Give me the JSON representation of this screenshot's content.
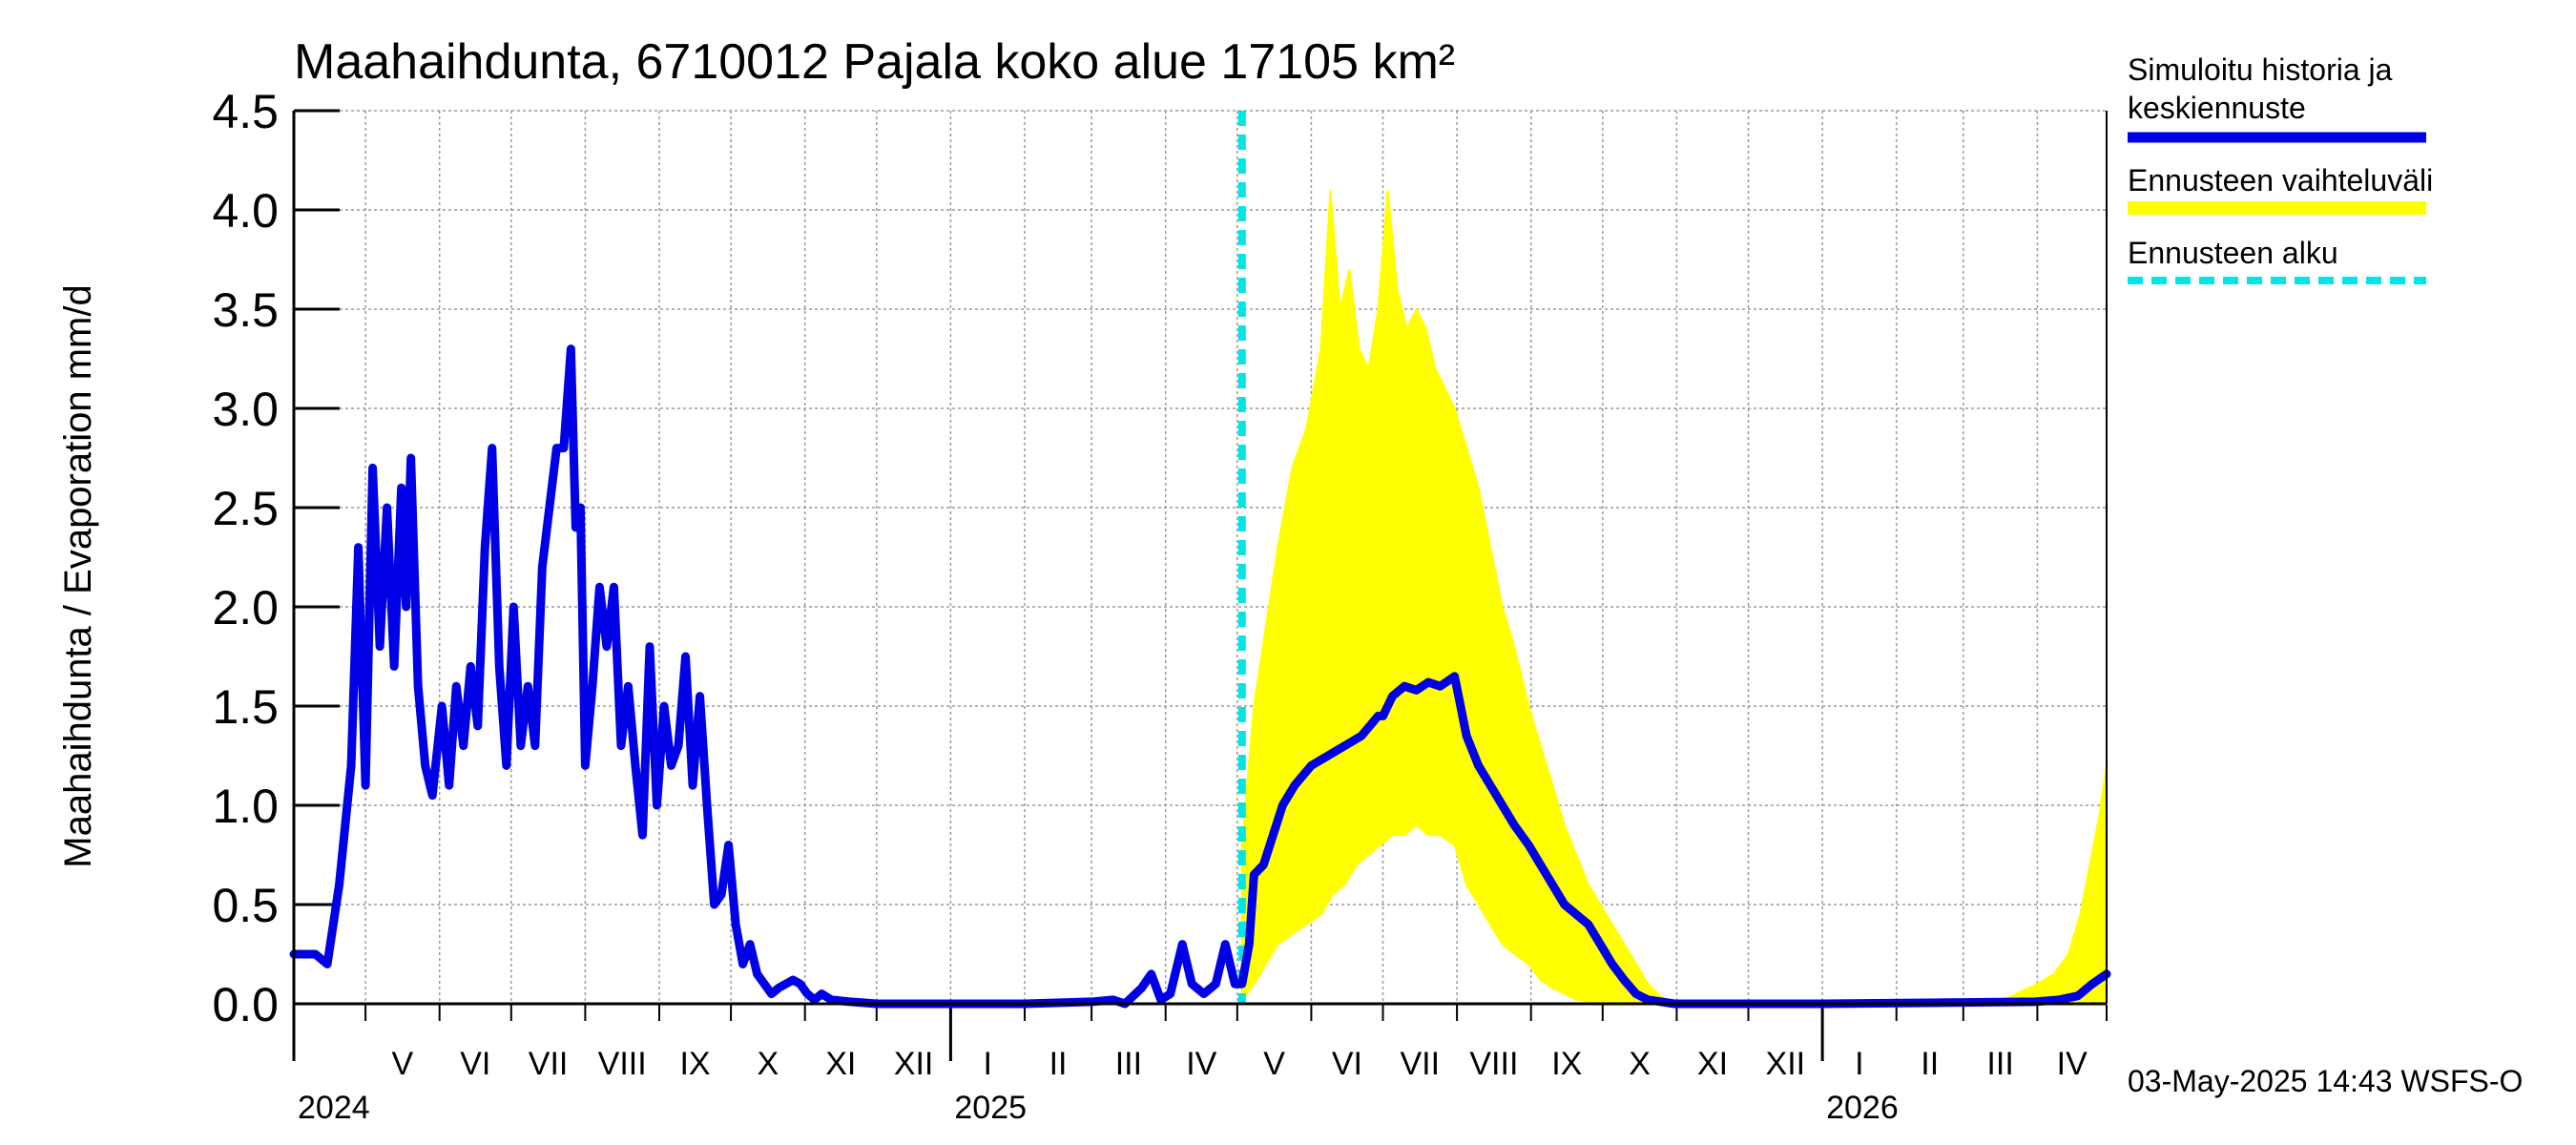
{
  "title": "Maahaihdunta, 6710012 Pajala koko alue 17105 km²",
  "footer": "03-May-2025 14:43 WSFS-O",
  "legend": {
    "history_line1": "Simuloitu historia ja",
    "history_line2": "keskiennuste",
    "range": "Ennusteen vaihteluväli",
    "start": "Ennusteen alku"
  },
  "colors": {
    "history": "#0000e6",
    "range": "#ffff00",
    "start": "#00e5e5",
    "grid": "#9a9a9a"
  },
  "chart_data": {
    "type": "area",
    "title": "Maahaihdunta, 6710012 Pajala koko alue 17105 km²",
    "ylabel": "Maahaihdunta / Evaporation   mm/d",
    "xlabel": "",
    "ylim": [
      0,
      4.5
    ],
    "yticks": [
      "0.0",
      "0.5",
      "1.0",
      "1.5",
      "2.0",
      "2.5",
      "3.0",
      "3.5",
      "4.0",
      "4.5"
    ],
    "xlim": [
      "2024-04-01",
      "2026-04-30"
    ],
    "month_labels": [
      {
        "label": "V",
        "month": "2024-05"
      },
      {
        "label": "VI",
        "month": "2024-06"
      },
      {
        "label": "VII",
        "month": "2024-07"
      },
      {
        "label": "VIII",
        "month": "2024-08"
      },
      {
        "label": "IX",
        "month": "2024-09"
      },
      {
        "label": "X",
        "month": "2024-10"
      },
      {
        "label": "XI",
        "month": "2024-11"
      },
      {
        "label": "XII",
        "month": "2024-12"
      },
      {
        "label": "I",
        "month": "2025-01"
      },
      {
        "label": "II",
        "month": "2025-02"
      },
      {
        "label": "III",
        "month": "2025-03"
      },
      {
        "label": "IV",
        "month": "2025-04"
      },
      {
        "label": "V",
        "month": "2025-05"
      },
      {
        "label": "VI",
        "month": "2025-06"
      },
      {
        "label": "VII",
        "month": "2025-07"
      },
      {
        "label": "VIII",
        "month": "2025-08"
      },
      {
        "label": "IX",
        "month": "2025-09"
      },
      {
        "label": "X",
        "month": "2025-10"
      },
      {
        "label": "XI",
        "month": "2025-11"
      },
      {
        "label": "XII",
        "month": "2025-12"
      },
      {
        "label": "I",
        "month": "2026-01"
      },
      {
        "label": "II",
        "month": "2026-02"
      },
      {
        "label": "III",
        "month": "2026-03"
      },
      {
        "label": "IV",
        "month": "2026-04"
      }
    ],
    "year_labels": [
      {
        "label": "2024",
        "date": "2024-04-01"
      },
      {
        "label": "2025",
        "date": "2025-01-01"
      },
      {
        "label": "2026",
        "date": "2026-01-01"
      }
    ],
    "forecast_start": "2025-05-03",
    "series": [
      {
        "name": "Simuloitu historia ja keskiennuste",
        "points": [
          [
            "2024-04-01",
            0.25
          ],
          [
            "2024-04-10",
            0.25
          ],
          [
            "2024-04-15",
            0.2
          ],
          [
            "2024-04-20",
            0.6
          ],
          [
            "2024-04-25",
            1.2
          ],
          [
            "2024-04-28",
            2.3
          ],
          [
            "2024-05-01",
            1.1
          ],
          [
            "2024-05-04",
            2.7
          ],
          [
            "2024-05-07",
            1.8
          ],
          [
            "2024-05-10",
            2.5
          ],
          [
            "2024-05-13",
            1.7
          ],
          [
            "2024-05-16",
            2.6
          ],
          [
            "2024-05-18",
            2.0
          ],
          [
            "2024-05-20",
            2.75
          ],
          [
            "2024-05-23",
            1.6
          ],
          [
            "2024-05-26",
            1.2
          ],
          [
            "2024-05-29",
            1.05
          ],
          [
            "2024-06-02",
            1.5
          ],
          [
            "2024-06-05",
            1.1
          ],
          [
            "2024-06-08",
            1.6
          ],
          [
            "2024-06-11",
            1.3
          ],
          [
            "2024-06-14",
            1.7
          ],
          [
            "2024-06-17",
            1.4
          ],
          [
            "2024-06-20",
            2.3
          ],
          [
            "2024-06-23",
            2.8
          ],
          [
            "2024-06-26",
            1.7
          ],
          [
            "2024-06-29",
            1.2
          ],
          [
            "2024-07-02",
            2.0
          ],
          [
            "2024-07-05",
            1.3
          ],
          [
            "2024-07-08",
            1.6
          ],
          [
            "2024-07-11",
            1.3
          ],
          [
            "2024-07-14",
            2.2
          ],
          [
            "2024-07-17",
            2.5
          ],
          [
            "2024-07-20",
            2.8
          ],
          [
            "2024-07-23",
            2.8
          ],
          [
            "2024-07-26",
            3.3
          ],
          [
            "2024-07-28",
            2.4
          ],
          [
            "2024-07-30",
            2.5
          ],
          [
            "2024-08-01",
            1.2
          ],
          [
            "2024-08-04",
            1.6
          ],
          [
            "2024-08-07",
            2.1
          ],
          [
            "2024-08-10",
            1.8
          ],
          [
            "2024-08-13",
            2.1
          ],
          [
            "2024-08-16",
            1.3
          ],
          [
            "2024-08-19",
            1.6
          ],
          [
            "2024-08-22",
            1.2
          ],
          [
            "2024-08-25",
            0.85
          ],
          [
            "2024-08-28",
            1.8
          ],
          [
            "2024-08-31",
            1.0
          ],
          [
            "2024-09-03",
            1.5
          ],
          [
            "2024-09-06",
            1.2
          ],
          [
            "2024-09-09",
            1.3
          ],
          [
            "2024-09-12",
            1.75
          ],
          [
            "2024-09-15",
            1.1
          ],
          [
            "2024-09-18",
            1.55
          ],
          [
            "2024-09-21",
            1.0
          ],
          [
            "2024-09-24",
            0.5
          ],
          [
            "2024-09-27",
            0.55
          ],
          [
            "2024-09-30",
            0.8
          ],
          [
            "2024-10-03",
            0.4
          ],
          [
            "2024-10-06",
            0.2
          ],
          [
            "2024-10-09",
            0.3
          ],
          [
            "2024-10-12",
            0.15
          ],
          [
            "2024-10-15",
            0.1
          ],
          [
            "2024-10-18",
            0.05
          ],
          [
            "2024-10-21",
            0.08
          ],
          [
            "2024-10-24",
            0.1
          ],
          [
            "2024-10-27",
            0.12
          ],
          [
            "2024-10-30",
            0.1
          ],
          [
            "2024-11-02",
            0.05
          ],
          [
            "2024-11-05",
            0.02
          ],
          [
            "2024-11-08",
            0.05
          ],
          [
            "2024-11-12",
            0.02
          ],
          [
            "2024-11-20",
            0.01
          ],
          [
            "2024-12-01",
            0.0
          ],
          [
            "2025-01-01",
            0.0
          ],
          [
            "2025-02-01",
            0.0
          ],
          [
            "2025-03-01",
            0.01
          ],
          [
            "2025-03-10",
            0.02
          ],
          [
            "2025-03-15",
            0.0
          ],
          [
            "2025-03-22",
            0.08
          ],
          [
            "2025-03-26",
            0.15
          ],
          [
            "2025-03-30",
            0.02
          ],
          [
            "2025-04-03",
            0.05
          ],
          [
            "2025-04-08",
            0.3
          ],
          [
            "2025-04-12",
            0.1
          ],
          [
            "2025-04-17",
            0.05
          ],
          [
            "2025-04-22",
            0.1
          ],
          [
            "2025-04-26",
            0.3
          ],
          [
            "2025-04-30",
            0.1
          ],
          [
            "2025-05-03",
            0.1
          ],
          [
            "2025-05-06",
            0.3
          ],
          [
            "2025-05-08",
            0.65
          ],
          [
            "2025-05-12",
            0.7
          ],
          [
            "2025-05-16",
            0.85
          ],
          [
            "2025-05-20",
            1.0
          ],
          [
            "2025-05-25",
            1.1
          ],
          [
            "2025-06-01",
            1.2
          ],
          [
            "2025-06-08",
            1.25
          ],
          [
            "2025-06-15",
            1.3
          ],
          [
            "2025-06-22",
            1.35
          ],
          [
            "2025-06-29",
            1.45
          ],
          [
            "2025-07-01",
            1.45
          ],
          [
            "2025-07-05",
            1.55
          ],
          [
            "2025-07-10",
            1.6
          ],
          [
            "2025-07-15",
            1.58
          ],
          [
            "2025-07-20",
            1.62
          ],
          [
            "2025-07-25",
            1.6
          ],
          [
            "2025-07-31",
            1.65
          ],
          [
            "2025-08-05",
            1.35
          ],
          [
            "2025-08-10",
            1.2
          ],
          [
            "2025-08-15",
            1.1
          ],
          [
            "2025-08-20",
            1.0
          ],
          [
            "2025-08-25",
            0.9
          ],
          [
            "2025-08-31",
            0.8
          ],
          [
            "2025-09-05",
            0.7
          ],
          [
            "2025-09-10",
            0.6
          ],
          [
            "2025-09-15",
            0.5
          ],
          [
            "2025-09-20",
            0.45
          ],
          [
            "2025-09-25",
            0.4
          ],
          [
            "2025-09-30",
            0.3
          ],
          [
            "2025-10-05",
            0.2
          ],
          [
            "2025-10-10",
            0.12
          ],
          [
            "2025-10-15",
            0.05
          ],
          [
            "2025-10-20",
            0.02
          ],
          [
            "2025-10-31",
            0.0
          ],
          [
            "2026-01-01",
            0.0
          ],
          [
            "2026-03-31",
            0.01
          ],
          [
            "2026-04-10",
            0.02
          ],
          [
            "2026-04-18",
            0.04
          ],
          [
            "2026-04-24",
            0.1
          ],
          [
            "2026-04-30",
            0.15
          ]
        ]
      },
      {
        "name": "Ennusteen vaihteluväli",
        "upper": [
          [
            "2025-05-03",
            0.8
          ],
          [
            "2025-05-08",
            1.5
          ],
          [
            "2025-05-13",
            1.9
          ],
          [
            "2025-05-18",
            2.3
          ],
          [
            "2025-05-24",
            2.7
          ],
          [
            "2025-05-30",
            2.9
          ],
          [
            "2025-06-05",
            3.3
          ],
          [
            "2025-06-09",
            4.1
          ],
          [
            "2025-06-13",
            3.5
          ],
          [
            "2025-06-17",
            3.7
          ],
          [
            "2025-06-21",
            3.3
          ],
          [
            "2025-06-25",
            3.2
          ],
          [
            "2025-06-29",
            3.5
          ],
          [
            "2025-07-03",
            4.1
          ],
          [
            "2025-07-07",
            3.6
          ],
          [
            "2025-07-11",
            3.4
          ],
          [
            "2025-07-15",
            3.5
          ],
          [
            "2025-07-19",
            3.4
          ],
          [
            "2025-07-23",
            3.2
          ],
          [
            "2025-07-27",
            3.1
          ],
          [
            "2025-07-31",
            3.0
          ],
          [
            "2025-08-05",
            2.8
          ],
          [
            "2025-08-10",
            2.6
          ],
          [
            "2025-08-15",
            2.3
          ],
          [
            "2025-08-20",
            2.0
          ],
          [
            "2025-08-25",
            1.8
          ],
          [
            "2025-08-31",
            1.5
          ],
          [
            "2025-09-05",
            1.3
          ],
          [
            "2025-09-10",
            1.1
          ],
          [
            "2025-09-15",
            0.9
          ],
          [
            "2025-09-20",
            0.75
          ],
          [
            "2025-09-25",
            0.6
          ],
          [
            "2025-09-30",
            0.5
          ],
          [
            "2025-10-05",
            0.4
          ],
          [
            "2025-10-10",
            0.3
          ],
          [
            "2025-10-15",
            0.2
          ],
          [
            "2025-10-20",
            0.1
          ],
          [
            "2025-10-25",
            0.04
          ],
          [
            "2025-10-31",
            0.0
          ],
          [
            "2026-03-15",
            0.0
          ],
          [
            "2026-03-25",
            0.06
          ],
          [
            "2026-04-01",
            0.1
          ],
          [
            "2026-04-08",
            0.15
          ],
          [
            "2026-04-14",
            0.25
          ],
          [
            "2026-04-19",
            0.45
          ],
          [
            "2026-04-23",
            0.7
          ],
          [
            "2026-04-27",
            0.95
          ],
          [
            "2026-04-30",
            1.2
          ]
        ],
        "lower": [
          [
            "2025-05-03",
            0.02
          ],
          [
            "2025-05-08",
            0.1
          ],
          [
            "2025-05-13",
            0.2
          ],
          [
            "2025-05-18",
            0.3
          ],
          [
            "2025-05-24",
            0.35
          ],
          [
            "2025-05-30",
            0.4
          ],
          [
            "2025-06-05",
            0.45
          ],
          [
            "2025-06-10",
            0.55
          ],
          [
            "2025-06-15",
            0.6
          ],
          [
            "2025-06-20",
            0.7
          ],
          [
            "2025-06-25",
            0.75
          ],
          [
            "2025-06-30",
            0.8
          ],
          [
            "2025-07-05",
            0.85
          ],
          [
            "2025-07-10",
            0.85
          ],
          [
            "2025-07-15",
            0.9
          ],
          [
            "2025-07-20",
            0.85
          ],
          [
            "2025-07-25",
            0.85
          ],
          [
            "2025-07-31",
            0.8
          ],
          [
            "2025-08-05",
            0.6
          ],
          [
            "2025-08-10",
            0.5
          ],
          [
            "2025-08-15",
            0.4
          ],
          [
            "2025-08-20",
            0.3
          ],
          [
            "2025-08-25",
            0.25
          ],
          [
            "2025-08-31",
            0.2
          ],
          [
            "2025-09-05",
            0.12
          ],
          [
            "2025-09-10",
            0.08
          ],
          [
            "2025-09-15",
            0.05
          ],
          [
            "2025-09-20",
            0.02
          ],
          [
            "2025-09-30",
            0.0
          ],
          [
            "2026-04-30",
            0.0
          ]
        ]
      }
    ]
  }
}
